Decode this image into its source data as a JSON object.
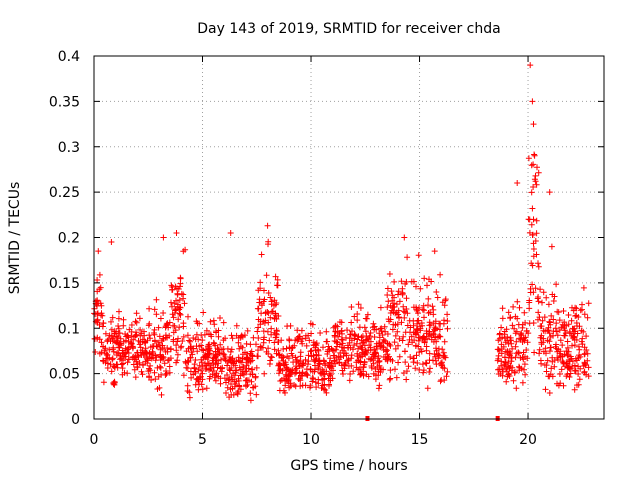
{
  "chart_data": {
    "type": "scatter",
    "title": "Day 143 of 2019, SRMTID for receiver chda",
    "xlabel": "GPS time / hours",
    "ylabel": "SRMTID / TECUs",
    "xlim": [
      0,
      23.5
    ],
    "ylim": [
      0,
      0.4
    ],
    "grid": true,
    "x_ticks": [
      0,
      5,
      10,
      15,
      20
    ],
    "x_tick_labels": [
      "0",
      "5",
      "10",
      "15",
      "20"
    ],
    "y_ticks": [
      0,
      0.05,
      0.1,
      0.15,
      0.2,
      0.25,
      0.3,
      0.35,
      0.4
    ],
    "y_tick_labels": [
      "0",
      "0.05",
      "0.1",
      "0.15",
      "0.2",
      "0.25",
      "0.3",
      "0.35",
      "0.4"
    ],
    "colors": {
      "series": "#ff0000",
      "grid": "#a0a0a0",
      "axis": "#000000"
    },
    "marker": "plus",
    "series": [
      {
        "name": "SRMTID",
        "envelope": [
          {
            "x_start": 0.0,
            "x_end": 0.4,
            "low": 0.05,
            "high": 0.19
          },
          {
            "x_start": 0.4,
            "x_end": 1.0,
            "low": 0.03,
            "high": 0.14
          },
          {
            "x_start": 1.0,
            "x_end": 2.5,
            "low": 0.04,
            "high": 0.13
          },
          {
            "x_start": 2.5,
            "x_end": 3.5,
            "low": 0.02,
            "high": 0.16
          },
          {
            "x_start": 3.5,
            "x_end": 4.2,
            "low": 0.04,
            "high": 0.21
          },
          {
            "x_start": 4.2,
            "x_end": 6.0,
            "low": 0.02,
            "high": 0.13
          },
          {
            "x_start": 6.0,
            "x_end": 7.5,
            "low": 0.01,
            "high": 0.12
          },
          {
            "x_start": 7.5,
            "x_end": 8.5,
            "low": 0.03,
            "high": 0.21
          },
          {
            "x_start": 8.5,
            "x_end": 11.0,
            "low": 0.02,
            "high": 0.12
          },
          {
            "x_start": 11.0,
            "x_end": 13.5,
            "low": 0.03,
            "high": 0.14
          },
          {
            "x_start": 13.5,
            "x_end": 15.0,
            "low": 0.03,
            "high": 0.2
          },
          {
            "x_start": 15.0,
            "x_end": 16.3,
            "low": 0.02,
            "high": 0.18
          },
          {
            "x_start": 18.6,
            "x_end": 20.0,
            "low": 0.03,
            "high": 0.15
          },
          {
            "x_start": 20.0,
            "x_end": 20.5,
            "low": 0.05,
            "high": 0.39
          },
          {
            "x_start": 20.5,
            "x_end": 22.8,
            "low": 0.02,
            "high": 0.16
          }
        ],
        "spikes": [
          {
            "x": 0.2,
            "y": 0.185
          },
          {
            "x": 0.8,
            "y": 0.195
          },
          {
            "x": 3.2,
            "y": 0.2
          },
          {
            "x": 3.8,
            "y": 0.205
          },
          {
            "x": 6.3,
            "y": 0.205
          },
          {
            "x": 8.0,
            "y": 0.213
          },
          {
            "x": 14.3,
            "y": 0.2
          },
          {
            "x": 15.7,
            "y": 0.185
          },
          {
            "x": 19.5,
            "y": 0.26
          },
          {
            "x": 20.1,
            "y": 0.39
          },
          {
            "x": 20.2,
            "y": 0.35
          },
          {
            "x": 20.25,
            "y": 0.325
          },
          {
            "x": 20.3,
            "y": 0.29
          },
          {
            "x": 20.35,
            "y": 0.262
          },
          {
            "x": 20.2,
            "y": 0.232
          },
          {
            "x": 20.25,
            "y": 0.22
          },
          {
            "x": 21.0,
            "y": 0.25
          },
          {
            "x": 21.1,
            "y": 0.19
          }
        ],
        "zero_points": [
          {
            "x": 12.6,
            "y": 0
          },
          {
            "x": 18.6,
            "y": 0
          }
        ]
      }
    ]
  }
}
